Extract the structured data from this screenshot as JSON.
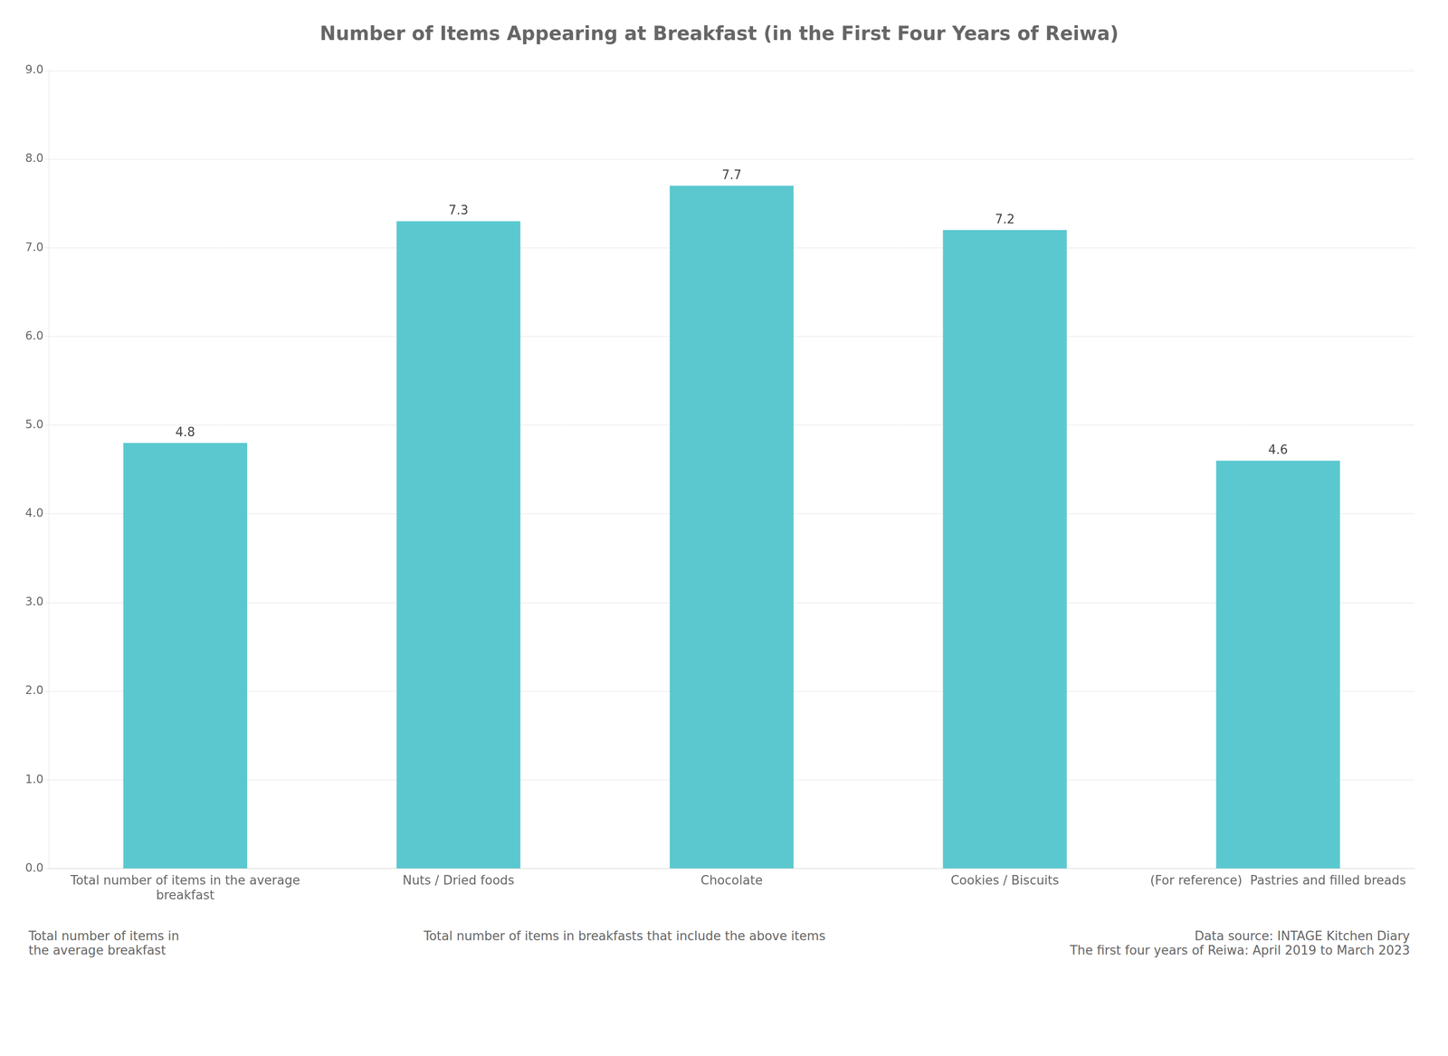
{
  "chart_data": {
    "type": "bar",
    "title": "Number of Items Appearing at Breakfast (in the First Four Years of Reiwa)",
    "categories": [
      "Total number of items in the average\nbreakfast",
      "Nuts / Dried foods",
      "Chocolate",
      "Cookies / Biscuits",
      "(For reference)  Pastries and filled breads"
    ],
    "values": [
      4.8,
      7.3,
      7.7,
      7.2,
      4.6
    ],
    "color": "#5bc8d0",
    "ylim": [
      0.0,
      9.0
    ],
    "yticks": [
      {
        "value": 0,
        "label": "0.0"
      },
      {
        "value": 1,
        "label": "1.0"
      },
      {
        "value": 2,
        "label": "2.0"
      },
      {
        "value": 3,
        "label": "3.0"
      },
      {
        "value": 4,
        "label": "4.0"
      },
      {
        "value": 5,
        "label": "5.0"
      },
      {
        "value": 6,
        "label": "6.0"
      },
      {
        "value": 7,
        "label": "7.0"
      },
      {
        "value": 8,
        "label": "8.0"
      },
      {
        "value": 9,
        "label": "9.0"
      }
    ],
    "grid": true,
    "data_labels": true,
    "annotations": [
      "Total number of items in\nthe average breakfast",
      "Total number of items in breakfasts that include the above items",
      "Data source: INTAGE Kitchen Diary\nThe first four years of Reiwa: April 2019 to March 2023"
    ]
  }
}
